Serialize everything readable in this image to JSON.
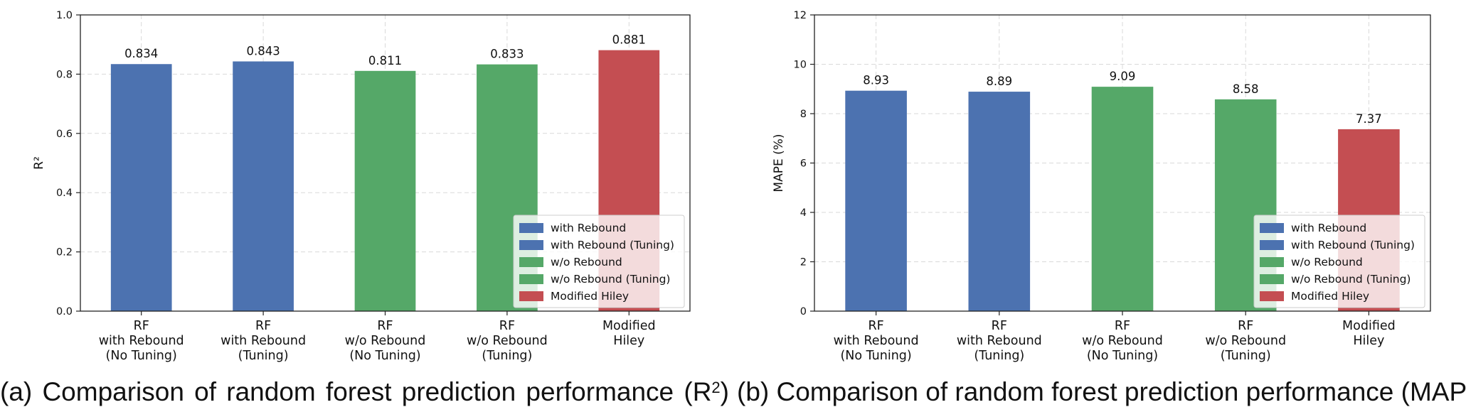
{
  "colors": {
    "blue": "#4c72b0",
    "green": "#55a868",
    "red": "#c44e52"
  },
  "chart_data": [
    {
      "type": "bar",
      "title": "",
      "xlabel": "",
      "ylabel": "R²",
      "ylim": [
        0,
        1.0
      ],
      "yticks": [
        0.0,
        0.2,
        0.4,
        0.6,
        0.8,
        1.0
      ],
      "ytick_labels": [
        "0.0",
        "0.2",
        "0.4",
        "0.6",
        "0.8",
        "1.0"
      ],
      "grid": true,
      "categories": [
        [
          "RF",
          "with Rebound",
          "(No Tuning)"
        ],
        [
          "RF",
          "with Rebound",
          "(Tuning)"
        ],
        [
          "RF",
          "w/o Rebound",
          "(No Tuning)"
        ],
        [
          "RF",
          "w/o Rebound",
          "(Tuning)"
        ],
        [
          "Modified",
          "Hiley"
        ]
      ],
      "values": [
        0.834,
        0.843,
        0.811,
        0.833,
        0.881
      ],
      "value_labels": [
        "0.834",
        "0.843",
        "0.811",
        "0.833",
        "0.881"
      ],
      "bar_colors": [
        "#4c72b0",
        "#4c72b0",
        "#55a868",
        "#55a868",
        "#c44e52"
      ],
      "legend": {
        "position": "lower right",
        "entries": [
          {
            "label": "with Rebound",
            "color": "#4c72b0"
          },
          {
            "label": "with Rebound (Tuning)",
            "color": "#4c72b0"
          },
          {
            "label": "w/o Rebound",
            "color": "#55a868"
          },
          {
            "label": "w/o Rebound (Tuning)",
            "color": "#55a868"
          },
          {
            "label": "Modified Hiley",
            "color": "#c44e52"
          }
        ]
      }
    },
    {
      "type": "bar",
      "title": "",
      "xlabel": "",
      "ylabel": "MAPE (%)",
      "ylim": [
        0,
        12
      ],
      "yticks": [
        0,
        2,
        4,
        6,
        8,
        10,
        12
      ],
      "ytick_labels": [
        "0",
        "2",
        "4",
        "6",
        "8",
        "10",
        "12"
      ],
      "grid": true,
      "categories": [
        [
          "RF",
          "with Rebound",
          "(No Tuning)"
        ],
        [
          "RF",
          "with Rebound",
          "(Tuning)"
        ],
        [
          "RF",
          "w/o Rebound",
          "(No Tuning)"
        ],
        [
          "RF",
          "w/o Rebound",
          "(Tuning)"
        ],
        [
          "Modified",
          "Hiley"
        ]
      ],
      "values": [
        8.93,
        8.89,
        9.09,
        8.58,
        7.37
      ],
      "value_labels": [
        "8.93",
        "8.89",
        "9.09",
        "8.58",
        "7.37"
      ],
      "bar_colors": [
        "#4c72b0",
        "#4c72b0",
        "#55a868",
        "#55a868",
        "#c44e52"
      ],
      "legend": {
        "position": "lower right",
        "entries": [
          {
            "label": "with Rebound",
            "color": "#4c72b0"
          },
          {
            "label": "with Rebound (Tuning)",
            "color": "#4c72b0"
          },
          {
            "label": "w/o Rebound",
            "color": "#55a868"
          },
          {
            "label": "w/o Rebound (Tuning)",
            "color": "#55a868"
          },
          {
            "label": "Modified Hiley",
            "color": "#c44e52"
          }
        ]
      }
    }
  ],
  "captions": {
    "a_text": "(a) Comparison of random forest prediction performance (R",
    "a_sup": "2",
    "a_close": ")",
    "b_text": "(b) Comparison of random forest prediction performance (MAPE)"
  }
}
